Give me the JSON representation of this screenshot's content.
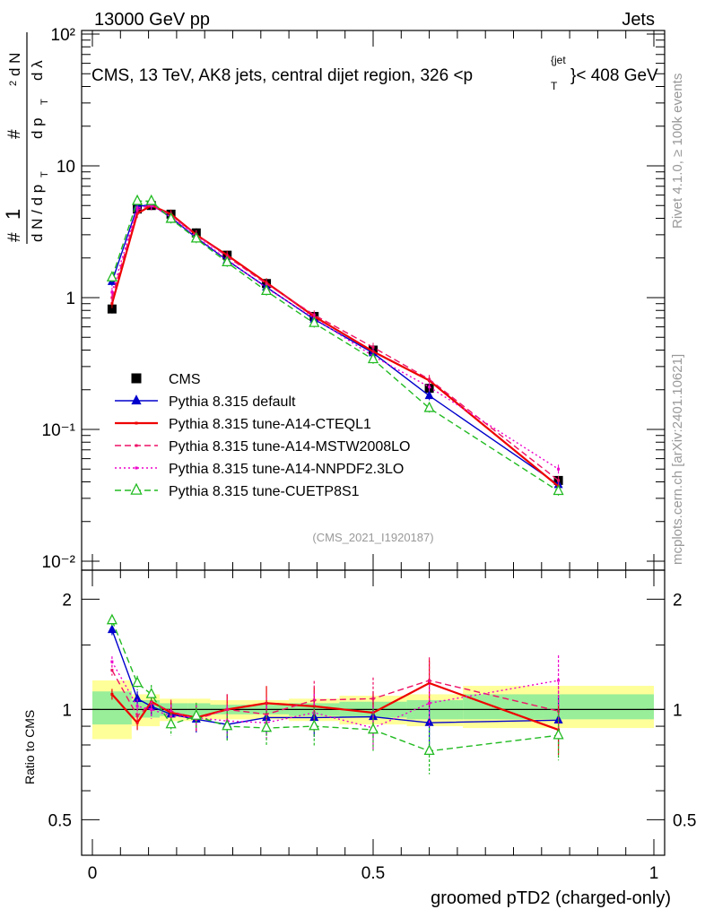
{
  "header": {
    "left": "13000 GeV pp",
    "right": "Jets",
    "title": "CMS, 13 TeV, AK8 jets, central dijet region, 326 <p",
    "title_sup": "{jet",
    "title_sub": "T",
    "title_end": "}< 408 GeV",
    "side_rivet": "Rivet 4.1.0, ≥ 100k events",
    "side_mcplots": "mcplots.cern.ch [arXiv:2401.10621]",
    "analysis_id": "(CMS_2021_I1920187)"
  },
  "chart_data": [
    {
      "type": "line",
      "title": "CMS, 13 TeV, AK8 jets, central dijet region, 326 < pT jet < 408 GeV",
      "xlabel": "groomed pTD2 (charged-only)",
      "ylabel": "1/dN/dpT d²N/dpT dλ",
      "yscale": "log",
      "xlim": [
        0,
        1
      ],
      "ylim": [
        0.01,
        100
      ],
      "y_ticks": [
        "10^{-2}",
        "10^{-1}",
        "1",
        "10",
        "10^{2}"
      ],
      "x": [
        0.035,
        0.08,
        0.105,
        0.14,
        0.185,
        0.24,
        0.31,
        0.395,
        0.5,
        0.6,
        0.83
      ],
      "series": [
        {
          "name": "CMS",
          "color": "#000000",
          "marker": "square",
          "line": "none",
          "values": [
            0.82,
            4.7,
            5.0,
            4.3,
            3.1,
            2.1,
            1.28,
            0.72,
            0.4,
            0.205,
            0.041
          ]
        },
        {
          "name": "Pythia 8.315 default",
          "color": "#0000cc",
          "marker": "triangle",
          "line": "solid",
          "values": [
            1.32,
            4.9,
            5.1,
            4.05,
            2.85,
            1.92,
            1.2,
            0.685,
            0.38,
            0.18,
            0.038
          ]
        },
        {
          "name": "Pythia 8.315 tune-A14-CTEQL1",
          "color": "#ee0000",
          "marker": "none",
          "line": "solid",
          "values": [
            0.9,
            4.35,
            5.0,
            4.3,
            3.0,
            2.1,
            1.3,
            0.72,
            0.39,
            0.235,
            0.037
          ]
        },
        {
          "name": "Pythia 8.315 tune-A14-MSTW2008LO",
          "color": "#ee1166",
          "marker": "none",
          "line": "dashed",
          "values": [
            1.0,
            4.6,
            5.1,
            4.2,
            3.0,
            2.05,
            1.27,
            0.74,
            0.42,
            0.24,
            0.041
          ]
        },
        {
          "name": "Pythia 8.315 tune-A14-NNPDF2.3LO",
          "color": "#ee00cc",
          "marker": "none",
          "line": "dotted",
          "values": [
            1.1,
            4.8,
            5.0,
            4.1,
            2.9,
            1.95,
            1.18,
            0.7,
            0.36,
            0.21,
            0.05
          ]
        },
        {
          "name": "Pythia 8.315 tune-CUETP8S1",
          "color": "#22bb22",
          "marker": "open-triangle",
          "line": "dashed",
          "values": [
            1.42,
            5.4,
            5.4,
            3.95,
            2.8,
            1.85,
            1.12,
            0.64,
            0.34,
            0.145,
            0.034
          ]
        }
      ]
    },
    {
      "type": "line",
      "title": "",
      "xlabel": "groomed pTD2 (charged-only)",
      "ylabel": "Ratio to CMS",
      "yscale": "log",
      "xlim": [
        0,
        1
      ],
      "ylim": [
        0.4,
        2.4
      ],
      "y_ticks": [
        "0.5",
        "1",
        "2"
      ],
      "x_ticks": [
        "0",
        "0.5",
        "1"
      ],
      "x": [
        0.035,
        0.08,
        0.105,
        0.14,
        0.185,
        0.24,
        0.31,
        0.395,
        0.5,
        0.6,
        0.83
      ],
      "series": [
        {
          "name": "Pythia 8.315 default",
          "color": "#0000cc",
          "values": [
            1.65,
            1.07,
            1.02,
            0.97,
            0.94,
            0.91,
            0.95,
            0.95,
            0.955,
            0.92,
            0.935
          ]
        },
        {
          "name": "Pythia 8.315 tune-A14-CTEQL1",
          "color": "#ee0000",
          "values": [
            1.1,
            0.92,
            1.05,
            0.98,
            0.95,
            1.0,
            1.04,
            1.02,
            0.98,
            1.18,
            0.88
          ]
        },
        {
          "name": "Pythia 8.315 tune-A14-MSTW2008LO",
          "color": "#ee1166",
          "values": [
            1.28,
            0.96,
            1.04,
            0.99,
            0.94,
            1.0,
            0.97,
            1.06,
            1.07,
            1.2,
            0.99
          ]
        },
        {
          "name": "Pythia 8.315 tune-A14-NNPDF2.3LO",
          "color": "#ee00cc",
          "values": [
            1.35,
            1.02,
            1.0,
            0.96,
            0.95,
            0.93,
            0.92,
            0.98,
            0.89,
            1.04,
            1.2
          ]
        },
        {
          "name": "Pythia 8.315 tune-CUETP8S1",
          "color": "#22bb22",
          "values": [
            1.75,
            1.18,
            1.1,
            0.91,
            0.96,
            0.9,
            0.89,
            0.9,
            0.88,
            0.77,
            0.85
          ]
        }
      ],
      "bands": [
        {
          "x0": 0.0,
          "x1": 0.07,
          "inner": [
            0.91,
            1.12
          ],
          "outer": [
            0.83,
            1.2
          ]
        },
        {
          "x0": 0.07,
          "x1": 0.12,
          "inner": [
            0.95,
            1.06
          ],
          "outer": [
            0.9,
            1.1
          ]
        },
        {
          "x0": 0.12,
          "x1": 0.17,
          "inner": [
            0.96,
            1.04
          ],
          "outer": [
            0.93,
            1.07
          ]
        },
        {
          "x0": 0.17,
          "x1": 0.21,
          "inner": [
            0.96,
            1.04
          ],
          "outer": [
            0.93,
            1.07
          ]
        },
        {
          "x0": 0.21,
          "x1": 0.27,
          "inner": [
            0.97,
            1.03
          ],
          "outer": [
            0.94,
            1.06
          ]
        },
        {
          "x0": 0.27,
          "x1": 0.35,
          "inner": [
            0.97,
            1.03
          ],
          "outer": [
            0.94,
            1.06
          ]
        },
        {
          "x0": 0.35,
          "x1": 0.44,
          "inner": [
            0.96,
            1.04
          ],
          "outer": [
            0.93,
            1.07
          ]
        },
        {
          "x0": 0.44,
          "x1": 0.56,
          "inner": [
            0.95,
            1.05
          ],
          "outer": [
            0.91,
            1.09
          ]
        },
        {
          "x0": 0.56,
          "x1": 0.66,
          "inner": [
            0.94,
            1.06
          ],
          "outer": [
            0.9,
            1.1
          ]
        },
        {
          "x0": 0.66,
          "x1": 1.0,
          "inner": [
            0.94,
            1.1
          ],
          "outer": [
            0.89,
            1.16
          ]
        }
      ]
    }
  ]
}
